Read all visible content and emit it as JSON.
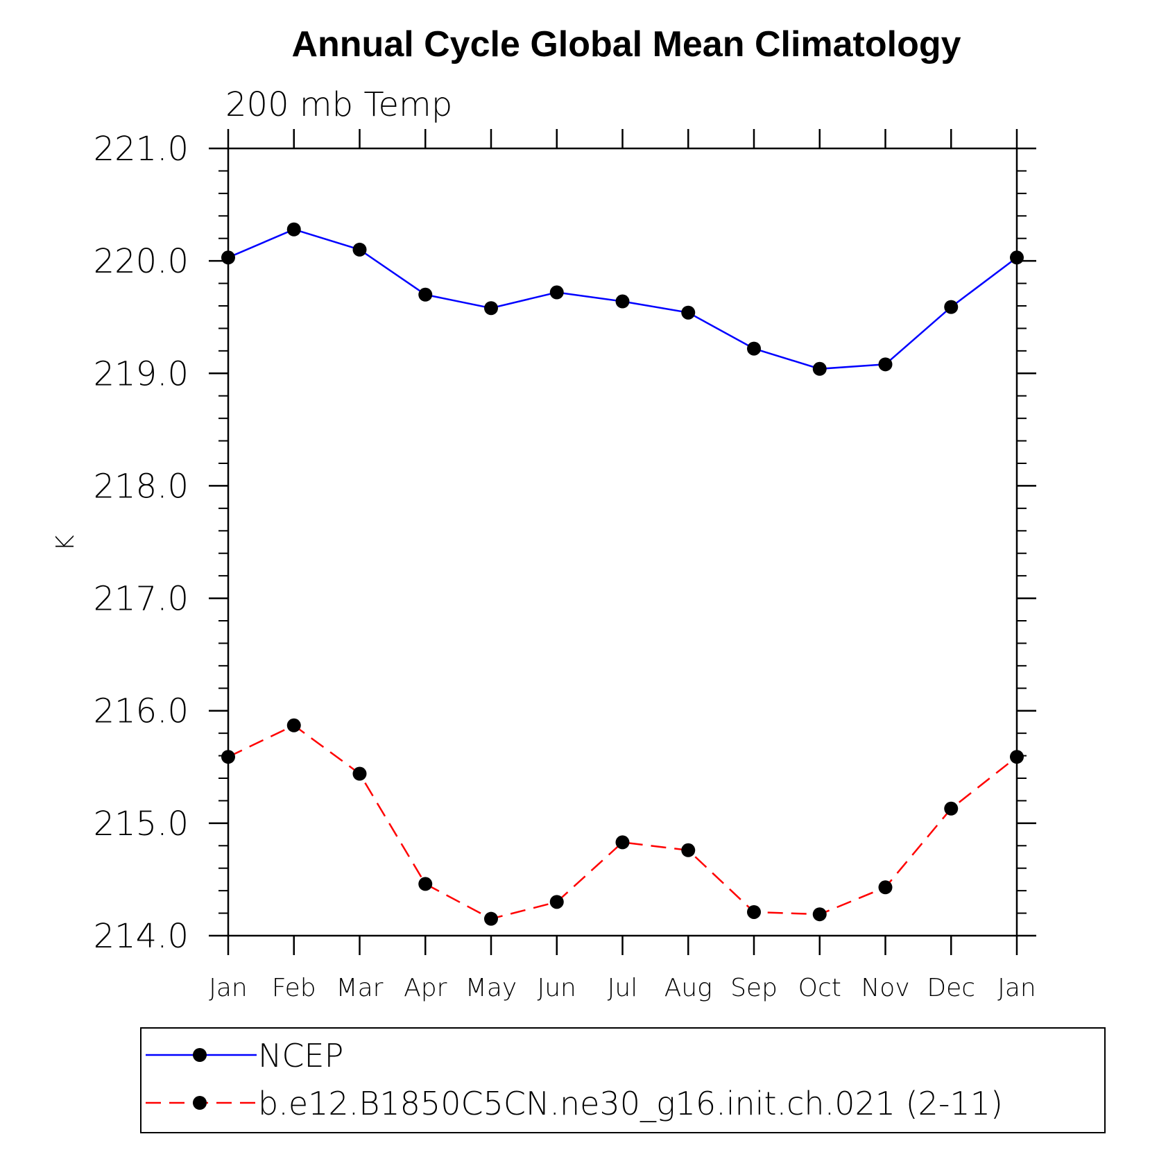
{
  "chart_data": {
    "type": "line",
    "title": "Annual Cycle Global Mean Climatology",
    "subtitle": "200 mb Temp",
    "xlabel": "",
    "ylabel": "K",
    "categories": [
      "Jan",
      "Feb",
      "Mar",
      "Apr",
      "May",
      "Jun",
      "Jul",
      "Aug",
      "Sep",
      "Oct",
      "Nov",
      "Dec",
      "Jan"
    ],
    "ylim": [
      214.0,
      221.0
    ],
    "yticks": [
      "214.0",
      "215.0",
      "216.0",
      "217.0",
      "218.0",
      "219.0",
      "220.0",
      "221.0"
    ],
    "grid": false,
    "legend_position": "bottom",
    "series": [
      {
        "name": "NCEP",
        "color": "#0000ff",
        "line_style": "solid",
        "marker": "filled-circle",
        "values": [
          220.03,
          220.28,
          220.1,
          219.7,
          219.58,
          219.72,
          219.64,
          219.54,
          219.22,
          219.04,
          219.08,
          219.59,
          220.03
        ]
      },
      {
        "name": "b.e12.B1850C5CN.ne30_g16.init.ch.021 (2-11)",
        "color": "#ff0000",
        "line_style": "dashed",
        "marker": "filled-circle",
        "values": [
          215.59,
          215.87,
          215.44,
          214.46,
          214.15,
          214.3,
          214.83,
          214.76,
          214.21,
          214.19,
          214.43,
          215.13,
          215.59
        ]
      }
    ]
  }
}
